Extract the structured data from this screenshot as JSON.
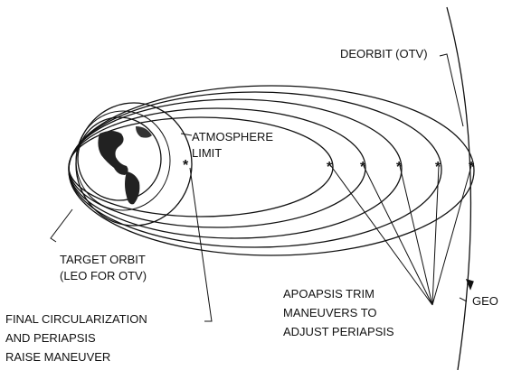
{
  "labels": {
    "deorbit": [
      "DEORBIT (OTV)"
    ],
    "atmosphere": [
      "ATMOSPHERE",
      "LIMIT"
    ],
    "target_orbit": [
      "TARGET ORBIT",
      "(LEO FOR OTV)"
    ],
    "final_circularization": [
      "FINAL CIRCULARIZATION",
      "AND PERIAPSIS",
      "RAISE MANEUVER"
    ],
    "apoapsis_trim": [
      "APOAPSIS TRIM",
      "MANEUVERS TO",
      "ADJUST PERIAPSIS"
    ],
    "geo": [
      "GEO"
    ]
  }
}
